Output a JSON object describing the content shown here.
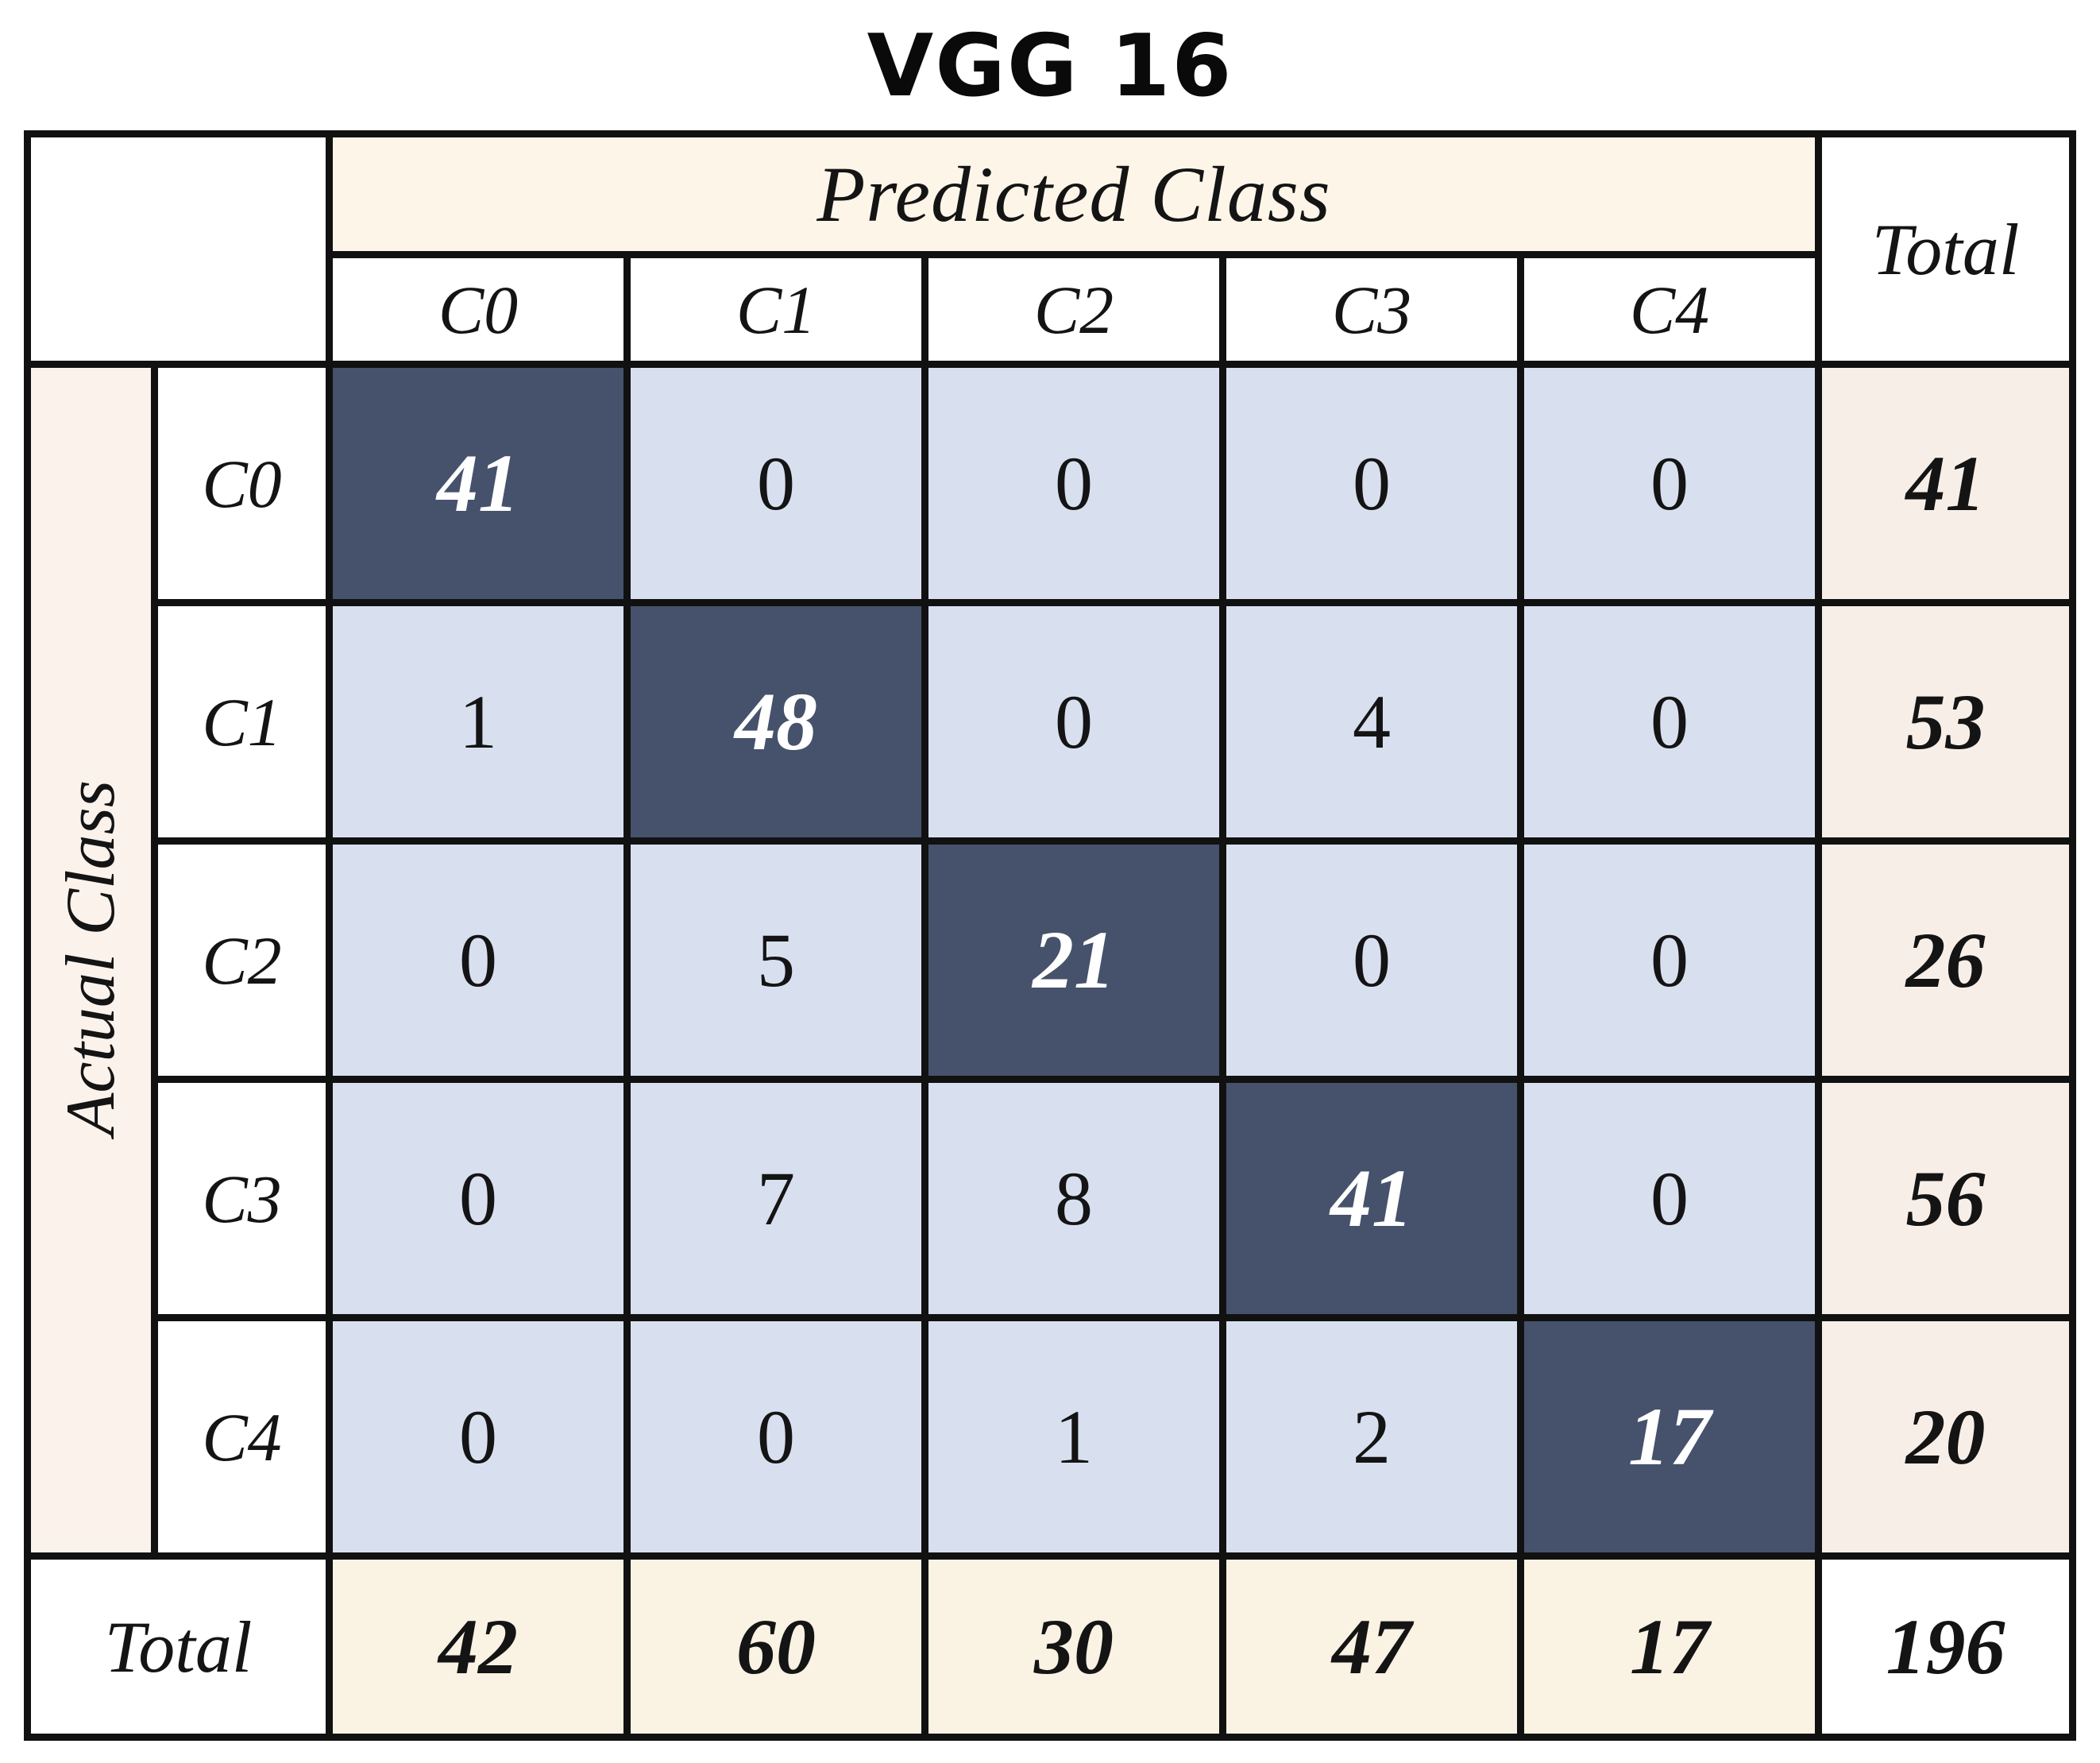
{
  "title": "VGG 16",
  "table": {
    "predicted_header": "Predicted Class",
    "actual_header": "Actual Class",
    "total_header": "Total",
    "total_row_label": "Total"
  },
  "chart_data": {
    "type": "heatmap",
    "title": "VGG 16",
    "x_label": "Predicted Class",
    "y_label": "Actual Class",
    "classes": [
      "C0",
      "C1",
      "C2",
      "C3",
      "C4"
    ],
    "matrix": [
      [
        41,
        0,
        0,
        0,
        0
      ],
      [
        1,
        48,
        0,
        4,
        0
      ],
      [
        0,
        5,
        21,
        0,
        0
      ],
      [
        0,
        7,
        8,
        41,
        0
      ],
      [
        0,
        0,
        1,
        2,
        17
      ]
    ],
    "row_totals": [
      41,
      53,
      26,
      56,
      20
    ],
    "col_totals": [
      42,
      60,
      30,
      47,
      17
    ],
    "grand_total": 196,
    "legend_position": "none",
    "grid": true
  },
  "colors": {
    "diagonal_bg": "#46526c",
    "offdiag_bg": "#d8e0f0",
    "header_cream": "#fdf5e8",
    "totals_row_cream": "#faf2e2",
    "actual_pink": "#fcf2ec",
    "row_total_pink": "#f8eee8",
    "white": "#ffffff",
    "border": "#111111",
    "diag_text": "#ffffff",
    "text": "#141414"
  }
}
